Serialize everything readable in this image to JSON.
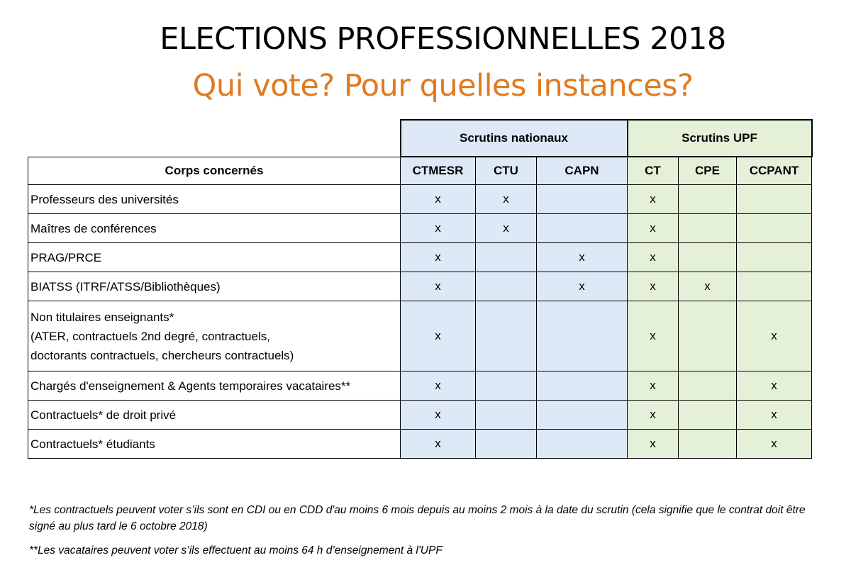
{
  "header": {
    "title": "ELECTIONS PROFESSIONNELLES 2018",
    "subtitle": "Qui vote? Pour quelles instances?"
  },
  "colors": {
    "subtitle": "#e07a1f",
    "national_bg": "#dde9f6",
    "upf_bg": "#e5f0d9"
  },
  "table": {
    "groups": {
      "national": "Scrutins nationaux",
      "upf": "Scrutins UPF"
    },
    "columns": [
      "Corps concernés",
      "CTMESR",
      "CTU",
      "CAPN",
      "CT",
      "CPE",
      "CCPANT"
    ],
    "rows": [
      {
        "lines": [
          "Professeurs des universités"
        ],
        "cells": [
          "x",
          "x",
          "",
          "x",
          "",
          ""
        ]
      },
      {
        "lines": [
          "Maîtres de conférences"
        ],
        "cells": [
          "x",
          "x",
          "",
          "x",
          "",
          ""
        ]
      },
      {
        "lines": [
          "PRAG/PRCE"
        ],
        "cells": [
          "x",
          "",
          "x",
          "x",
          "",
          ""
        ]
      },
      {
        "lines": [
          "BIATSS (ITRF/ATSS/Bibliothèques)"
        ],
        "cells": [
          "x",
          "",
          "x",
          "x",
          "x",
          ""
        ]
      },
      {
        "lines": [
          "Non titulaires enseignants*",
          "(ATER, contractuels 2nd degré, contractuels,",
          "doctorants contractuels, chercheurs contractuels)"
        ],
        "cells": [
          "x",
          "",
          "",
          "x",
          "",
          "x"
        ]
      },
      {
        "lines": [
          "Chargés d'enseignement & Agents temporaires vacataires**"
        ],
        "cells": [
          "x",
          "",
          "",
          "x",
          "",
          "x"
        ]
      },
      {
        "lines": [
          "Contractuels* de droit privé"
        ],
        "cells": [
          "x",
          "",
          "",
          "x",
          "",
          "x"
        ]
      },
      {
        "lines": [
          "Contractuels* étudiants"
        ],
        "cells": [
          "x",
          "",
          "",
          "x",
          "",
          "x"
        ]
      }
    ]
  },
  "footnotes": [
    "*Les contractuels peuvent voter s’ils sont en CDI ou en CDD d'au moins 6 mois depuis au moins 2 mois à la date du scrutin (cela signifie que le contrat doit être signé au plus tard le 6 octobre 2018)",
    "**Les vacataires peuvent voter s’ils effectuent au moins 64 h d’enseignement à l'UPF"
  ]
}
